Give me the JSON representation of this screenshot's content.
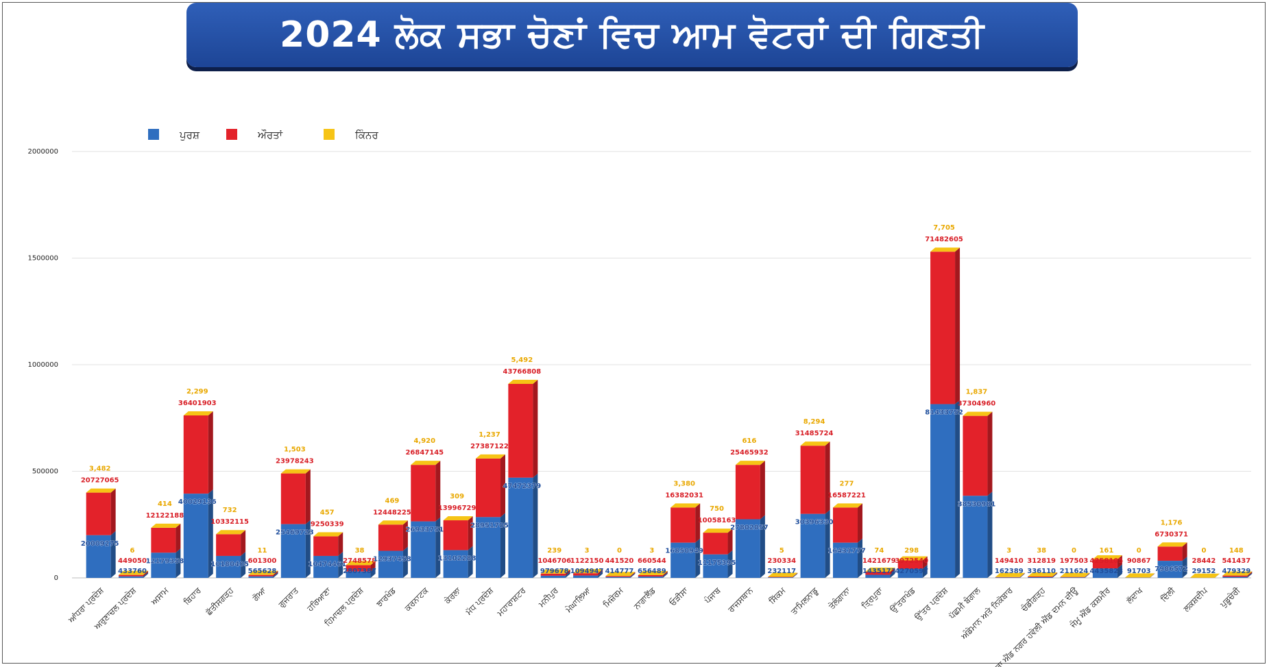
{
  "title": "2024 ਲੋਕ ਸਭਾ ਚੋਣਾਂ ਵਿਚ ਆਮ ਵੋਟਰਾਂ ਦੀ ਗਿਣਤੀ",
  "colors": {
    "men": "#2f6ebf",
    "women": "#e3222a",
    "third": "#f6c416"
  },
  "chart_data": {
    "type": "bar",
    "stacked": true,
    "legend_position": "top-left",
    "grid": true,
    "ylim": [
      0,
      2000000
    ],
    "yticks": [
      "0",
      "500000",
      "1000000",
      "1500000",
      "2000000"
    ],
    "series": [
      {
        "name": "ਪੁਰਸ਼",
        "color": "#2f6ebf"
      },
      {
        "name": "ਔਰਤਾਂ",
        "color": "#e3222a"
      },
      {
        "name": "ਕਿੰਨਰ",
        "color": "#f6c416"
      }
    ],
    "states": [
      {
        "name": "ਆਂਧਰਾ ਪ੍ਰਦੇਸ਼",
        "men": "20009275",
        "women": "20727065",
        "third": "3,482",
        "total": 400000,
        "split": 200000
      },
      {
        "name": "ਅਰੁਣਾਚਲ ਪ੍ਰਦੇਸ਼",
        "men": "433760",
        "women": "449050",
        "third": "6",
        "total": 14000,
        "split": 7000
      },
      {
        "name": "ਅਸਾਮ",
        "men": "12179358",
        "women": "12122188",
        "third": "414",
        "total": 235000,
        "split": 118000
      },
      {
        "name": "ਬਿਹਾਰ",
        "men": "40029136",
        "women": "36401903",
        "third": "2,299",
        "total": 762000,
        "split": 395000
      },
      {
        "name": "ਛੱਤੀਸਗੜ੍ਹ",
        "men": "10180405",
        "women": "10332115",
        "third": "732",
        "total": 205000,
        "split": 103000
      },
      {
        "name": "ਗੋਆ",
        "men": "565628",
        "women": "601300",
        "third": "11",
        "total": 14000,
        "split": 7000
      },
      {
        "name": "ਗੁਜਰਾਤ",
        "men": "25469723",
        "women": "23978243",
        "third": "1,503",
        "total": 490000,
        "split": 252000
      },
      {
        "name": "ਹਰਿਆਣਾ",
        "men": "10474461",
        "women": "9250339",
        "third": "457",
        "total": 195000,
        "split": 103000
      },
      {
        "name": "ਹਿਮਾਚਲ ਪ੍ਰਦੇਸ਼",
        "men": "2807387",
        "women": "2748578",
        "third": "38",
        "total": 60000,
        "split": 30000
      },
      {
        "name": "ਝਾਰਖੰਡ",
        "men": "12937458",
        "women": "12448225",
        "third": "469",
        "total": 250000,
        "split": 127000
      },
      {
        "name": "ਕਰਨਾਟਕ",
        "men": "26933751",
        "women": "26847145",
        "third": "4,920",
        "total": 530000,
        "split": 265000
      },
      {
        "name": "ਕੇਰਲਾ",
        "men": "13102288",
        "women": "13996729",
        "third": "309",
        "total": 270000,
        "split": 130000
      },
      {
        "name": "ਮੱਧ ਪ੍ਰਦੇਸ਼",
        "men": "28951705",
        "women": "27387122",
        "third": "1,237",
        "total": 560000,
        "split": 285000
      },
      {
        "name": "ਮਹਾਰਾਸ਼ਟਰ",
        "men": "47472379",
        "women": "43766808",
        "third": "5,492",
        "total": 910000,
        "split": 470000
      },
      {
        "name": "ਮਨੀਪੁਰ",
        "men": "979678",
        "women": "1046706",
        "third": "239",
        "total": 20000,
        "split": 10000
      },
      {
        "name": "ਮੇਘਾਲਿਆ",
        "men": "1094947",
        "women": "1122150",
        "third": "3",
        "total": 22000,
        "split": 11000
      },
      {
        "name": "ਮਿਜ਼ੋਰਮ",
        "men": "414777",
        "women": "441520",
        "third": "0",
        "total": 9000,
        "split": 4500
      },
      {
        "name": "ਨਾਗਾਲੈਂਡ",
        "men": "656489",
        "women": "660544",
        "third": "3",
        "total": 13000,
        "split": 6500
      },
      {
        "name": "ਓੜੀਸਾ",
        "men": "16850949",
        "women": "16382031",
        "third": "3,380",
        "total": 330000,
        "split": 165000
      },
      {
        "name": "ਪੰਜਾਬ",
        "men": "11175395",
        "women": "10058163",
        "third": "750",
        "total": 212000,
        "split": 110000
      },
      {
        "name": "ਰਾਜਸਥਾਨ",
        "men": "27802057",
        "women": "25465932",
        "third": "616",
        "total": 530000,
        "split": 275000
      },
      {
        "name": "ਸਿੱਕਮ",
        "men": "232117",
        "women": "230334",
        "third": "5",
        "total": 5000,
        "split": 2500
      },
      {
        "name": "ਤਾਮਿਲਨਾਡੂ",
        "men": "30396330",
        "women": "31485724",
        "third": "8,294",
        "total": 620000,
        "split": 300000
      },
      {
        "name": "ਤੇਲੰਗਾਨਾ",
        "men": "16431777",
        "women": "16587221",
        "third": "277",
        "total": 330000,
        "split": 165000
      },
      {
        "name": "ਤ੍ਰਿਪੁਰਾ",
        "men": "1435172",
        "women": "1421679",
        "third": "74",
        "total": 29000,
        "split": 14500
      },
      {
        "name": "ਉੱਤਰਾਖੰਡ",
        "men": "4270597",
        "women": "3972540",
        "third": "298",
        "total": 82000,
        "split": 42000
      },
      {
        "name": "ਉੱਤਰ ਪ੍ਰਦੇਸ਼",
        "men": "81433752",
        "women": "71482605",
        "third": "7,705",
        "total": 1530000,
        "split": 815000
      },
      {
        "name": "ਪੱਛਮੀ ਬੰਗਾਲ",
        "men": "38530981",
        "women": "37304960",
        "third": "1,837",
        "total": 760000,
        "split": 385000
      },
      {
        "name": "ਅੰਡੇਮਾਨ ਅਤੇ ਨਿਕੋਬਾਰ",
        "men": "162389",
        "women": "149410",
        "third": "3",
        "total": 4000,
        "split": 2000
      },
      {
        "name": "ਚੰਡੀਗੜ੍ਹ",
        "men": "336110",
        "women": "312819",
        "third": "38",
        "total": 6500,
        "split": 3300
      },
      {
        "name": "ਦਾਦਰਾ ਐਂਡ ਨਗਰ ਹਵੇਲੀ ਐਂਡ ਦਮਨ ਦੀਊ",
        "men": "211624",
        "women": "197503",
        "third": "0",
        "total": 4500,
        "split": 2200
      },
      {
        "name": "ਜੰਮੂ ਐਂਡ ਕਸ਼ਮੀਰ",
        "men": "4435823",
        "women": "4258105",
        "third": "161",
        "total": 87000,
        "split": 44000
      },
      {
        "name": "ਲੱਦਾਖ",
        "men": "91703",
        "women": "90867",
        "third": "0",
        "total": 2000,
        "split": 1000
      },
      {
        "name": "ਦਿੱਲੀ",
        "men": "7986572",
        "women": "6730371",
        "third": "1,176",
        "total": 147000,
        "split": 80000
      },
      {
        "name": "ਲਕਸ਼ਦੀਪ",
        "men": "29152",
        "women": "28442",
        "third": "0",
        "total": 1000,
        "split": 500
      },
      {
        "name": "ਪੁਡੂਚੇਰੀ",
        "men": "479329",
        "women": "541437",
        "third": "148",
        "total": 11000,
        "split": 5000
      }
    ]
  }
}
